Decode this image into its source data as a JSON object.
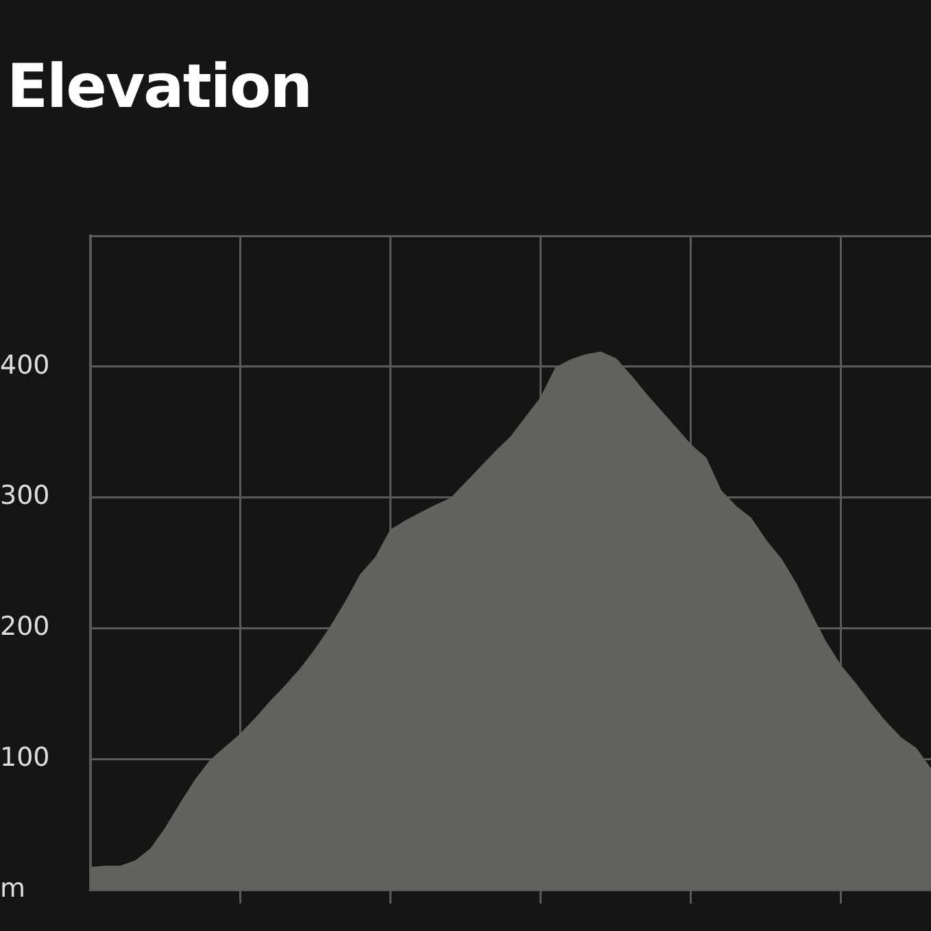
{
  "chart_data": {
    "type": "area",
    "title": "Elevation",
    "categories": [
      null,
      null,
      null,
      null,
      null,
      null,
      null,
      null,
      null,
      null,
      null,
      null,
      null,
      null,
      null,
      null,
      null,
      null,
      null,
      null,
      null,
      null,
      null,
      null,
      null,
      null,
      null,
      null,
      null,
      null,
      null,
      null,
      null,
      null,
      null,
      null,
      null,
      null,
      null,
      null,
      null,
      null,
      null,
      null,
      null,
      null,
      null,
      null,
      null,
      null,
      null,
      null,
      null,
      null,
      null,
      null,
      null
    ],
    "series": [
      {
        "color": "#62635c",
        "values": [
          17,
          18,
          18,
          22,
          31,
          47,
          66,
          84,
          99,
          109,
          119,
          131,
          144,
          156,
          169,
          184,
          201,
          220,
          241,
          254,
          275,
          282,
          288,
          294,
          299,
          311,
          323,
          335,
          346,
          361,
          376,
          399,
          405,
          409,
          411,
          406,
          393,
          379,
          366,
          353,
          340,
          330,
          305,
          293,
          284,
          267,
          253,
          234,
          211,
          189,
          171,
          157,
          142,
          128,
          116,
          108,
          92
        ]
      }
    ],
    "ylim": [
      0,
      500
    ],
    "yticks": [
      {
        "value": 0,
        "label": "m"
      },
      100,
      200,
      300,
      400,
      {
        "value": 500,
        "label": null
      }
    ],
    "grid": true,
    "tick_labels": "y"
  }
}
